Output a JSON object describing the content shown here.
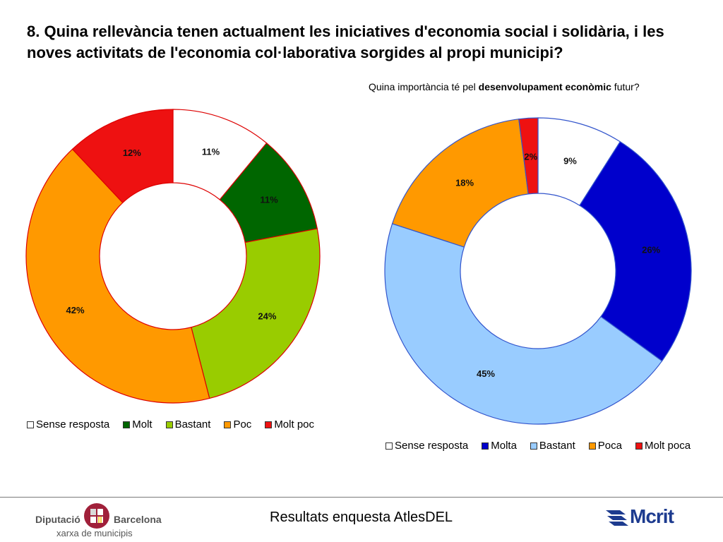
{
  "title": "8. Quina rellevància tenen actualment les iniciatives d'economia social i solidària, i les noves activitats de l'economia col·laborativa sorgides al propi municipi?",
  "subtitle": {
    "prefix": "Quina importància té pel ",
    "bold": "desenvolupament econòmic",
    "suffix": " futur?"
  },
  "chart_data": [
    {
      "type": "pie",
      "variant": "donut",
      "start": "top",
      "direction": "clockwise",
      "categories": [
        "Sense resposta",
        "Molt",
        "Bastant",
        "Poc",
        "Molt poc"
      ],
      "values": [
        11,
        11,
        24,
        42,
        12
      ],
      "labels": [
        "11%",
        "11%",
        "24%",
        "42%",
        "12%"
      ],
      "colors": [
        "#ffffff",
        "#006600",
        "#99cc00",
        "#ff9900",
        "#ee1111"
      ],
      "slice_edge_color": "#dd0000",
      "legend_position": "bottom"
    },
    {
      "type": "pie",
      "variant": "donut",
      "start": "top",
      "direction": "clockwise",
      "categories": [
        "Sense resposta",
        "Molta",
        "Bastant",
        "Poca",
        "Molt poca"
      ],
      "values": [
        9,
        26,
        45,
        18,
        2
      ],
      "labels": [
        "9%",
        "26%",
        "45%",
        "18%",
        "2%"
      ],
      "colors": [
        "#ffffff",
        "#0000cc",
        "#99ccff",
        "#ff9900",
        "#ee1111"
      ],
      "slice_edge_color": "#3355cc",
      "legend_position": "bottom"
    }
  ],
  "footer": {
    "caption": "Resultats enquesta AtlesDEL",
    "logo_left_name1": "Diputació",
    "logo_left_name2": "Barcelona",
    "logo_left_sub": "xarxa de municipis",
    "logo_right": "Mcrit"
  }
}
